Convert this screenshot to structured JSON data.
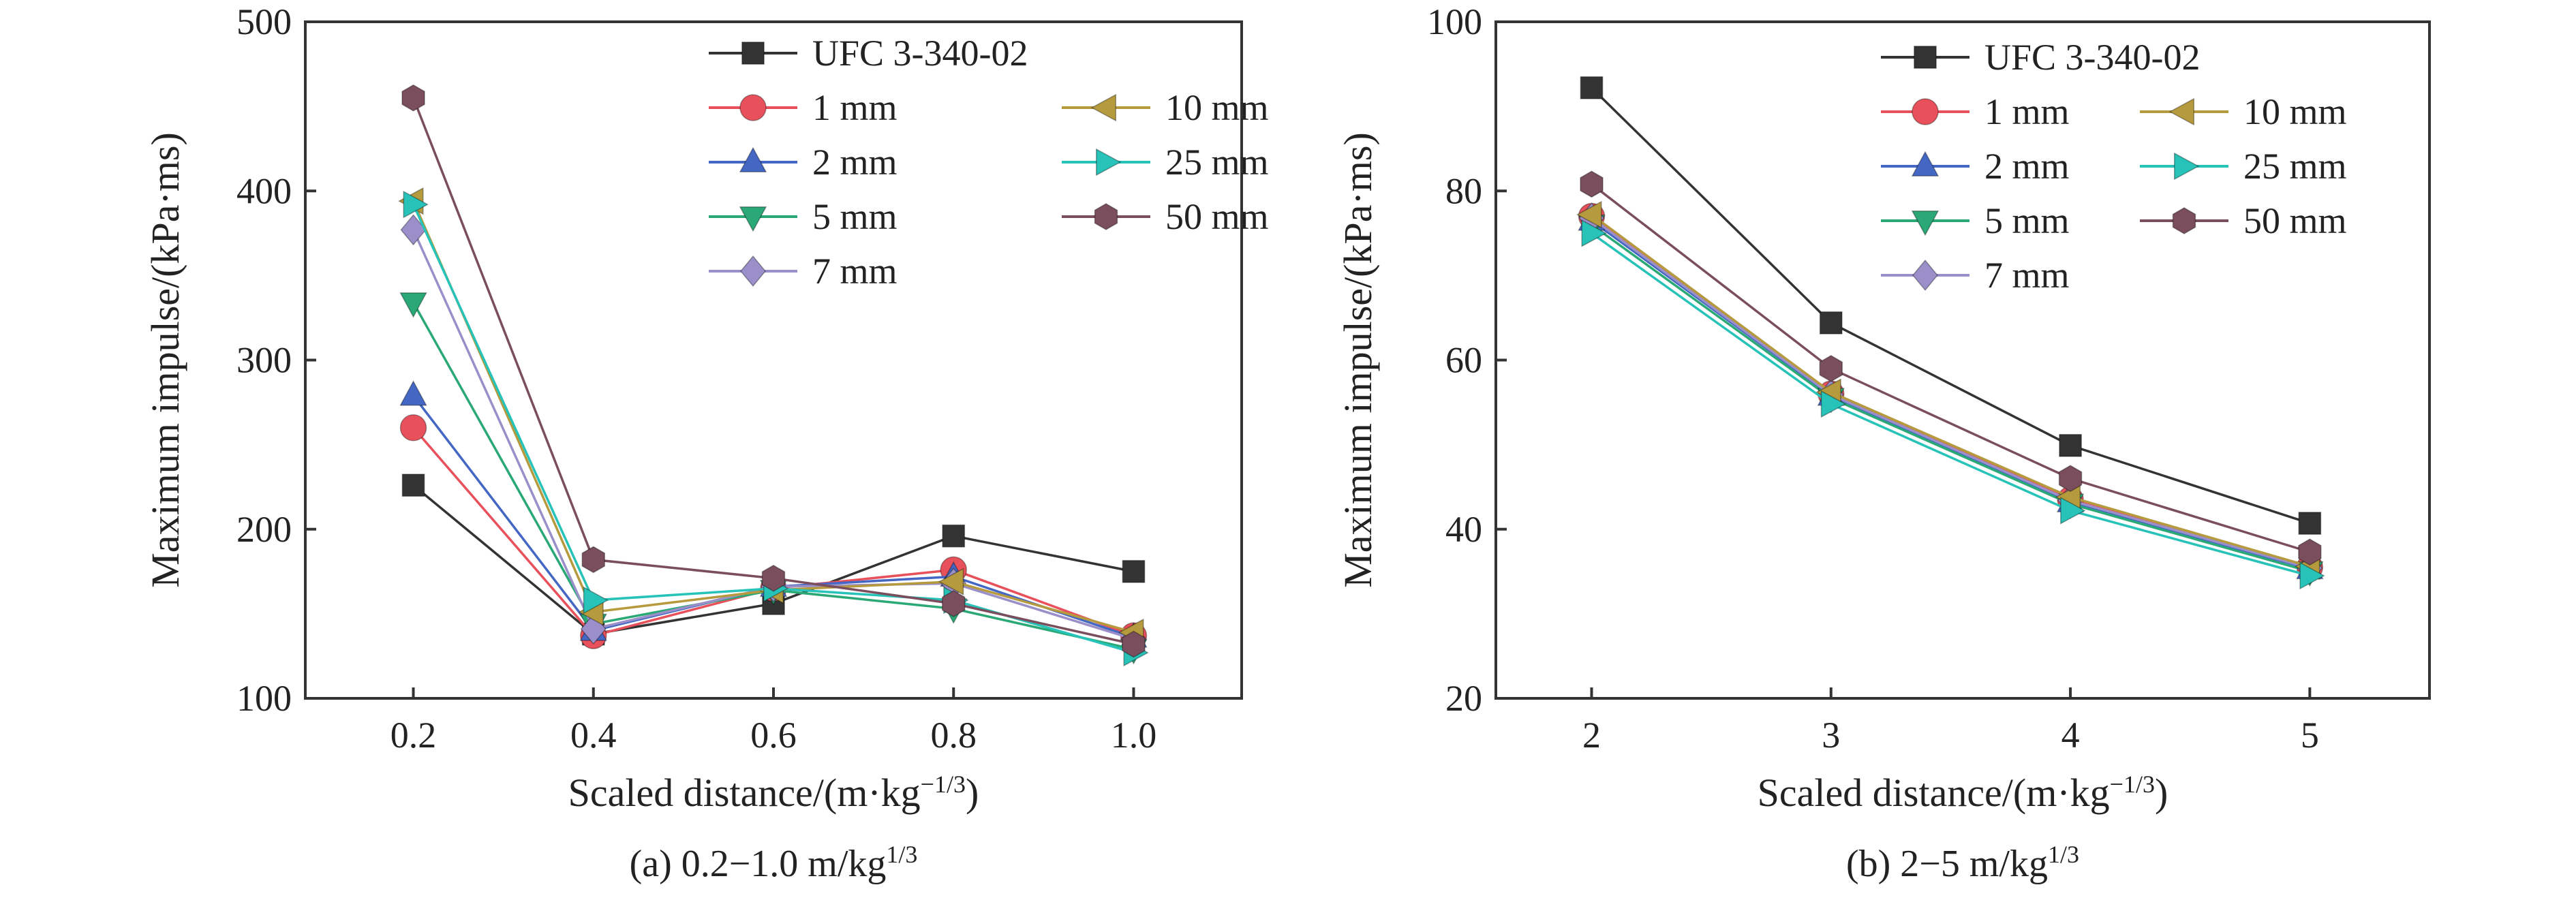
{
  "chart_data": [
    {
      "type": "line",
      "caption": "(a) 0.2−1.0 m/kg",
      "caption_sup": "1/3",
      "xlabel": "Scaled distance/(m·kg",
      "xlabel_sup": "−1/3",
      "xlabel_end": ")",
      "ylabel": "Maximum impulse/(kPa·ms)",
      "x": [
        0.2,
        0.4,
        0.6,
        0.8,
        1.0
      ],
      "xticks": [
        "0.2",
        "0.4",
        "0.6",
        "0.8",
        "1.0"
      ],
      "xlim": [
        0.08,
        1.12
      ],
      "ylim": [
        100,
        500
      ],
      "yticks": [
        100,
        200,
        300,
        400,
        500
      ],
      "legend_position": "top-right",
      "series": [
        {
          "name": "UFC 3-340-02",
          "color": "#333333",
          "marker": "square",
          "values": [
            226,
            138,
            156,
            196,
            175
          ]
        },
        {
          "name": "1 mm",
          "color": "#e8505b",
          "marker": "circle",
          "values": [
            260,
            137,
            165,
            176,
            137
          ]
        },
        {
          "name": "2 mm",
          "color": "#4467c4",
          "marker": "triangle-up",
          "values": [
            279,
            140,
            166,
            172,
            136
          ]
        },
        {
          "name": "5 mm",
          "color": "#2aa876",
          "marker": "triangle-down",
          "values": [
            334,
            144,
            164,
            153,
            129
          ]
        },
        {
          "name": "7 mm",
          "color": "#9a8fc9",
          "marker": "diamond",
          "values": [
            377,
            141,
            166,
            168,
            135
          ]
        },
        {
          "name": "10 mm",
          "color": "#b59a3e",
          "marker": "triangle-left",
          "values": [
            394,
            151,
            164,
            169,
            139
          ]
        },
        {
          "name": "25 mm",
          "color": "#27c2b8",
          "marker": "triangle-right",
          "values": [
            392,
            158,
            165,
            158,
            127
          ]
        },
        {
          "name": "50 mm",
          "color": "#7a4e5c",
          "marker": "hexagon",
          "values": [
            455,
            182,
            171,
            156,
            132
          ]
        }
      ]
    },
    {
      "type": "line",
      "caption": "(b) 2−5 m/kg",
      "caption_sup": "1/3",
      "xlabel": "Scaled distance/(m·kg",
      "xlabel_sup": "−1/3",
      "xlabel_end": ")",
      "ylabel": "Maximum impulse/(kPa·ms)",
      "x": [
        2,
        3,
        4,
        5
      ],
      "xticks": [
        "2",
        "3",
        "4",
        "5"
      ],
      "xlim": [
        1.6,
        5.5
      ],
      "ylim": [
        20,
        100
      ],
      "yticks": [
        20,
        40,
        60,
        80,
        100
      ],
      "legend_position": "top-right",
      "series": [
        {
          "name": "UFC 3-340-02",
          "color": "#333333",
          "marker": "square",
          "values": [
            92.2,
            64.4,
            49.9,
            40.7
          ]
        },
        {
          "name": "1 mm",
          "color": "#e8505b",
          "marker": "circle",
          "values": [
            77.0,
            56.0,
            43.5,
            35.5
          ]
        },
        {
          "name": "2 mm",
          "color": "#4467c4",
          "marker": "triangle-up",
          "values": [
            76.5,
            55.8,
            43.2,
            35.3
          ]
        },
        {
          "name": "5 mm",
          "color": "#2aa876",
          "marker": "triangle-down",
          "values": [
            76.0,
            55.5,
            43.0,
            35.0
          ]
        },
        {
          "name": "7 mm",
          "color": "#9a8fc9",
          "marker": "diamond",
          "values": [
            76.8,
            55.9,
            43.4,
            35.4
          ]
        },
        {
          "name": "10 mm",
          "color": "#b59a3e",
          "marker": "triangle-left",
          "values": [
            77.2,
            56.2,
            43.8,
            35.6
          ]
        },
        {
          "name": "25 mm",
          "color": "#27c2b8",
          "marker": "triangle-right",
          "values": [
            75.0,
            54.8,
            42.2,
            34.5
          ]
        },
        {
          "name": "50 mm",
          "color": "#7a4e5c",
          "marker": "hexagon",
          "values": [
            80.8,
            59.0,
            46.0,
            37.3
          ]
        }
      ]
    }
  ]
}
